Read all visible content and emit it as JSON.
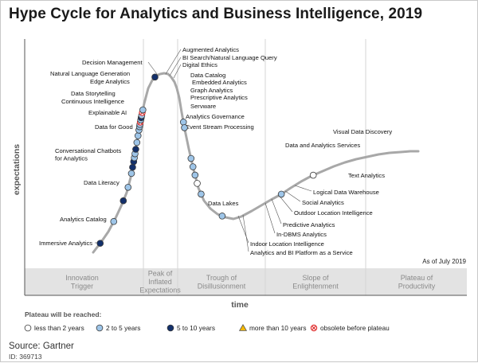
{
  "title": "Hype Cycle for Analytics and Business Intelligence, 2019",
  "source": "Source: Gartner",
  "doc_id": "ID: 369713",
  "as_of": "As of July 2019",
  "colors": {
    "less_than_2": "#ffffff",
    "2_to_5": "#9ec5e8",
    "5_to_10": "#13306b",
    "more_than_10": "#f5b800",
    "obsolete": "#e03030",
    "curve": "#a8a8a8",
    "phase_band": "#e3e3e3"
  },
  "chart_data": {
    "type": "scatter",
    "xlabel": "time",
    "ylabel": "expectations",
    "phases": [
      "Innovation\nTrigger",
      "Peak of\nInflated\nExpectations",
      "Trough of\nDisillusionment",
      "Slope of\nEnlightenment",
      "Plateau of\nProductivity"
    ],
    "legend_title": "Plateau will be reached:",
    "legend": [
      {
        "key": "lt2",
        "label": "less than 2 years"
      },
      {
        "key": "2to5",
        "label": "2 to 5 years"
      },
      {
        "key": "5to10",
        "label": "5 to 10 years"
      },
      {
        "key": "gt10",
        "label": "more than 10 years"
      },
      {
        "key": "obsolete",
        "label": "obsolete before plateau"
      }
    ],
    "points": [
      {
        "label": "Immersive Analytics",
        "t": 0.02,
        "cat": "5to10"
      },
      {
        "label": "Analytics Catalog",
        "t": 0.065,
        "cat": "2to5"
      },
      {
        "label": "Data Literacy",
        "t": 0.105,
        "cat": "5to10"
      },
      {
        "label": "Conversational Chatbots\nfor Analytics",
        "t": 0.13,
        "cat": "2to5"
      },
      {
        "label": "Data for Good",
        "t": 0.155,
        "cat": "2to5"
      },
      {
        "label": "Explainable AI",
        "t": 0.166,
        "cat": "5to10"
      },
      {
        "label": "Continuous Intelligence",
        "t": 0.176,
        "cat": "5to10"
      },
      {
        "label": "Data Storytelling",
        "t": 0.183,
        "cat": "2to5"
      },
      {
        "label": "Edge Analytics",
        "t": 0.19,
        "cat": "2to5"
      },
      {
        "label": "Natural Language Generation",
        "t": 0.198,
        "cat": "5to10"
      },
      {
        "label": "Decision Management",
        "t": 0.21,
        "cat": "2to5"
      },
      {
        "label": "Augmented Analytics",
        "t": 0.222,
        "cat": "2to5"
      },
      {
        "label": "BI Search/Natural Language Query",
        "t": 0.232,
        "cat": "2to5"
      },
      {
        "label": "Digital Ethics",
        "t": 0.238,
        "cat": "2to5"
      },
      {
        "label": "Data Catalog",
        "t": 0.242,
        "cat": "2to5"
      },
      {
        "label": "Embedded Analytics",
        "t": 0.246,
        "cat": "obsolete"
      },
      {
        "label": "Graph Analytics",
        "t": 0.25,
        "cat": "2to5"
      },
      {
        "label": "Prescriptive Analytics",
        "t": 0.254,
        "cat": "5to10"
      },
      {
        "label": "Servware",
        "t": 0.258,
        "cat": "2to5"
      },
      {
        "label": "Analytics Governance",
        "t": 0.263,
        "cat": "obsolete"
      },
      {
        "label": "Event Stream Processing",
        "t": 0.268,
        "cat": "2to5"
      },
      {
        "label": "Data Lakes",
        "t": 0.33,
        "cat": "5to10"
      },
      {
        "label": "Indoor Location Intelligence",
        "t": 0.445,
        "cat": "2to5"
      },
      {
        "label": "Analytics and BI Platform as a Service",
        "t": 0.455,
        "cat": "2to5"
      },
      {
        "label": "In-DBMS Analytics",
        "t": 0.51,
        "cat": "2to5"
      },
      {
        "label": "Predictive Analytics",
        "t": 0.525,
        "cat": "2to5"
      },
      {
        "label": "Outdoor Location Intelligence",
        "t": 0.54,
        "cat": "2to5"
      },
      {
        "label": "Social Analytics",
        "t": 0.555,
        "cat": "lt2"
      },
      {
        "label": "Logical Data Warehouse",
        "t": 0.575,
        "cat": "2to5"
      },
      {
        "label": "Text Analytics",
        "t": 0.63,
        "cat": "2to5"
      },
      {
        "label": "Data and Analytics Services",
        "t": 0.745,
        "cat": "2to5"
      },
      {
        "label": "Visual Data Discovery",
        "t": 0.81,
        "cat": "lt2"
      }
    ]
  }
}
